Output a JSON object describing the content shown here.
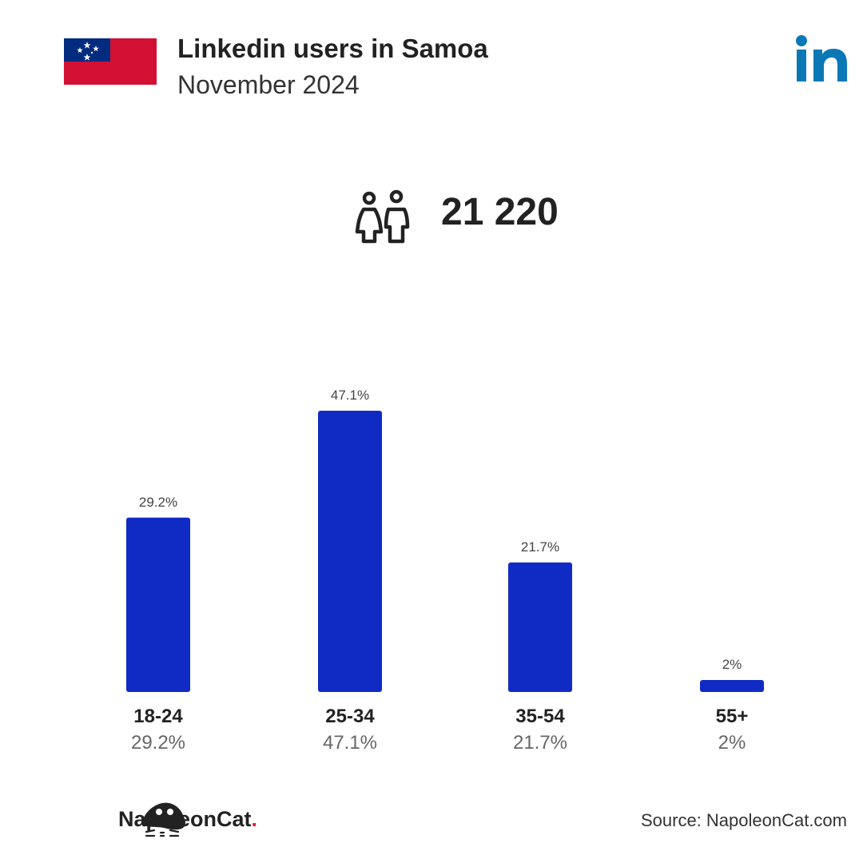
{
  "header": {
    "title": "Linkedin users in Samoa",
    "subtitle": "November 2024"
  },
  "summary": {
    "total_users": "21 220"
  },
  "colors": {
    "bar": "#102bc4",
    "linkedin_blue": "#0a78b5",
    "flag_red": "#d21034",
    "flag_blue": "#002b7f"
  },
  "icons": {
    "flag": "samoa-flag-icon",
    "logo": "linkedin-logo-icon",
    "users": "people-icon",
    "brand": "napoleoncat-logo-icon"
  },
  "chart_data": {
    "type": "bar",
    "categories": [
      "18-24",
      "25-34",
      "35-54",
      "55+"
    ],
    "values": [
      29.2,
      47.1,
      21.7,
      2
    ],
    "value_labels": [
      "29.2%",
      "47.1%",
      "21.7%",
      "2%"
    ],
    "ylim": [
      0,
      47.1
    ],
    "grid": false,
    "legend": "none"
  },
  "footer": {
    "brand_name": "NapoleonCat",
    "brand_dot": ".",
    "source": "Source: NapoleonCat.com"
  }
}
